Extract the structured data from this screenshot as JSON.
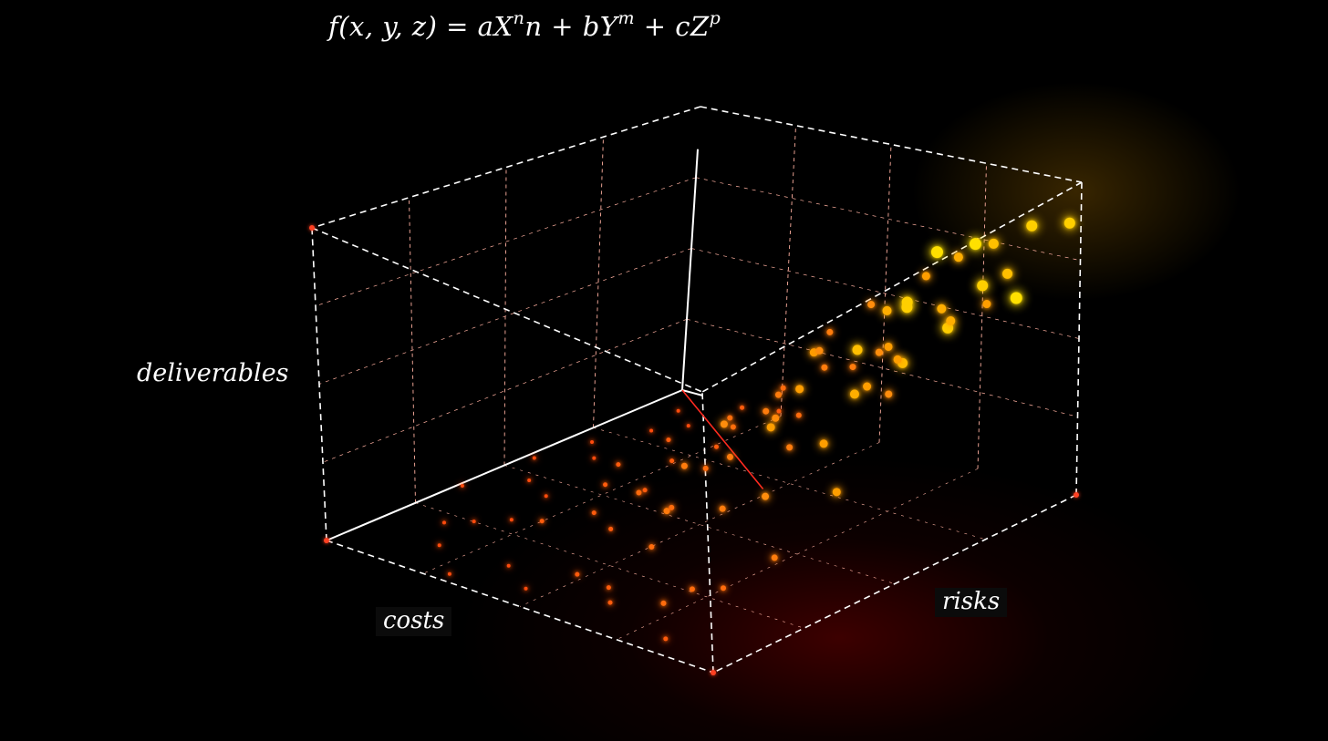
{
  "title": {
    "prefix": "f(x, y, z) = aX",
    "exp1": "n",
    "mid1": "n + bY",
    "exp2": "m",
    "mid2": " + cZ",
    "exp3": "p"
  },
  "chart_data": {
    "type": "scatter",
    "dimensions": 3,
    "axes": {
      "x": {
        "label": "costs"
      },
      "y": {
        "label": "risks"
      },
      "z": {
        "label": "deliverables"
      }
    },
    "ticks": {
      "x": 4,
      "y": 4,
      "z": 4
    },
    "grid": true,
    "colors": {
      "point_low": "#ff3a10",
      "point_high": "#ffe000",
      "axis": "#ffffff",
      "gridline": "#ffb0a0",
      "trend": "#ff2a20"
    },
    "trend_line": {
      "from": [
        0,
        0,
        0
      ],
      "to": [
        0.85,
        1.0,
        0.55
      ]
    },
    "points_note": "",
    "points": [
      [
        0.3,
        0.92,
        0.95,
        1.0
      ],
      [
        0.08,
        0.95,
        0.9,
        0.9
      ],
      [
        0.15,
        0.98,
        0.72,
        1.0
      ],
      [
        0.22,
        0.96,
        0.8,
        0.9
      ],
      [
        0.05,
        0.86,
        0.7,
        0.8
      ],
      [
        0.25,
        0.9,
        0.66,
        0.9
      ],
      [
        0.12,
        0.8,
        0.78,
        0.7
      ],
      [
        0.35,
        0.88,
        0.6,
        0.8
      ],
      [
        0.4,
        0.94,
        0.84,
        0.9
      ],
      [
        0.18,
        0.84,
        0.62,
        0.7
      ],
      [
        0.1,
        0.74,
        0.58,
        0.7
      ],
      [
        0.28,
        0.8,
        0.54,
        0.6
      ],
      [
        0.45,
        0.86,
        0.7,
        0.8
      ],
      [
        0.06,
        0.66,
        0.64,
        0.6
      ],
      [
        0.2,
        0.7,
        0.5,
        0.6
      ],
      [
        0.32,
        0.76,
        0.46,
        0.6
      ],
      [
        0.14,
        0.62,
        0.42,
        0.5
      ],
      [
        0.38,
        0.68,
        0.58,
        0.6
      ],
      [
        0.5,
        0.82,
        0.4,
        0.6
      ],
      [
        0.26,
        0.58,
        0.48,
        0.5
      ],
      [
        0.08,
        0.54,
        0.52,
        0.5
      ],
      [
        0.42,
        0.62,
        0.36,
        0.5
      ],
      [
        0.16,
        0.5,
        0.34,
        0.4
      ],
      [
        0.55,
        0.9,
        0.3,
        0.6
      ],
      [
        0.34,
        0.52,
        0.3,
        0.4
      ],
      [
        0.6,
        0.78,
        0.5,
        0.6
      ],
      [
        0.22,
        0.44,
        0.26,
        0.4
      ],
      [
        0.48,
        0.56,
        0.24,
        0.4
      ],
      [
        0.04,
        0.4,
        0.36,
        0.4
      ],
      [
        0.12,
        0.36,
        0.2,
        0.3
      ],
      [
        0.3,
        0.4,
        0.18,
        0.3
      ],
      [
        0.65,
        0.7,
        0.22,
        0.4
      ],
      [
        0.44,
        0.46,
        0.14,
        0.3
      ],
      [
        0.2,
        0.3,
        0.12,
        0.3
      ],
      [
        0.7,
        0.88,
        0.16,
        0.4
      ],
      [
        0.56,
        0.4,
        0.1,
        0.3
      ],
      [
        0.1,
        0.24,
        0.08,
        0.2
      ],
      [
        0.36,
        0.3,
        0.06,
        0.2
      ],
      [
        0.74,
        0.6,
        0.1,
        0.3
      ],
      [
        0.26,
        0.2,
        0.04,
        0.2
      ],
      [
        0.62,
        0.34,
        0.04,
        0.2
      ],
      [
        0.8,
        0.76,
        0.06,
        0.3
      ],
      [
        0.48,
        0.24,
        0.02,
        0.2
      ],
      [
        0.16,
        0.16,
        0.02,
        0.1
      ],
      [
        0.84,
        0.5,
        0.02,
        0.2
      ],
      [
        0.7,
        0.28,
        0.03,
        0.2
      ],
      [
        0.92,
        0.66,
        0.04,
        0.2
      ],
      [
        0.58,
        0.18,
        0.01,
        0.1
      ],
      [
        0.38,
        0.12,
        0.01,
        0.1
      ],
      [
        0.88,
        0.36,
        0.01,
        0.1
      ],
      [
        0.76,
        0.16,
        0.01,
        0.1
      ],
      [
        0.96,
        0.84,
        0.02,
        0.2
      ],
      [
        0.27,
        0.99,
        0.98,
        1.0
      ],
      [
        0.02,
        0.99,
        0.88,
        0.9
      ],
      [
        0.44,
        0.98,
        0.9,
        0.9
      ],
      [
        0.13,
        0.9,
        0.86,
        0.8
      ],
      [
        0.33,
        0.82,
        0.74,
        0.7
      ],
      [
        0.52,
        0.92,
        0.62,
        0.7
      ],
      [
        0.02,
        0.78,
        0.56,
        0.6
      ],
      [
        0.24,
        0.74,
        0.38,
        0.5
      ],
      [
        0.46,
        0.72,
        0.52,
        0.6
      ],
      [
        0.58,
        0.64,
        0.44,
        0.5
      ],
      [
        0.68,
        0.84,
        0.34,
        0.5
      ],
      [
        0.06,
        0.48,
        0.28,
        0.4
      ],
      [
        0.36,
        0.6,
        0.22,
        0.4
      ],
      [
        0.52,
        0.48,
        0.2,
        0.4
      ],
      [
        0.78,
        0.68,
        0.28,
        0.4
      ],
      [
        0.14,
        0.42,
        0.14,
        0.3
      ],
      [
        0.62,
        0.54,
        0.14,
        0.3
      ],
      [
        0.82,
        0.86,
        0.12,
        0.3
      ],
      [
        0.28,
        0.34,
        0.08,
        0.2
      ],
      [
        0.5,
        0.36,
        0.06,
        0.2
      ],
      [
        0.9,
        0.78,
        0.08,
        0.3
      ],
      [
        0.04,
        0.28,
        0.05,
        0.2
      ],
      [
        0.66,
        0.42,
        0.04,
        0.2
      ],
      [
        0.4,
        0.2,
        0.03,
        0.2
      ],
      [
        0.86,
        0.6,
        0.03,
        0.2
      ],
      [
        0.22,
        0.12,
        0.02,
        0.1
      ],
      [
        0.72,
        0.22,
        0.02,
        0.1
      ],
      [
        0.94,
        0.46,
        0.01,
        0.1
      ],
      [
        0.54,
        0.1,
        0.01,
        0.1
      ],
      [
        0.32,
        0.06,
        0.01,
        0.1
      ],
      [
        0.8,
        0.12,
        0.01,
        0.1
      ],
      [
        0.98,
        0.3,
        0.01,
        0.1
      ],
      [
        0.64,
        0.02,
        0.01,
        0.1
      ],
      [
        0.1,
        0.08,
        0.01,
        0.1
      ],
      [
        0.46,
        0.04,
        0.02,
        0.1
      ],
      [
        0.9,
        0.2,
        0.02,
        0.1
      ]
    ]
  }
}
